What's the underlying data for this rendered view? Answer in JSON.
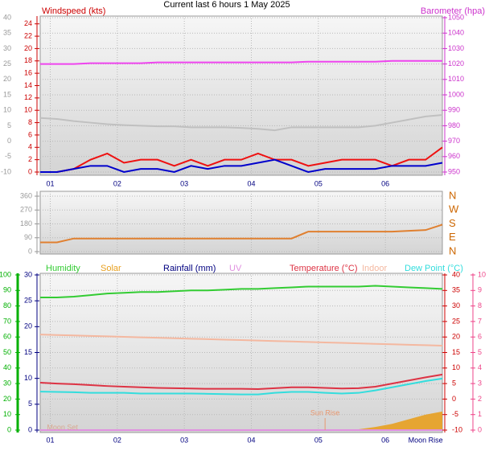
{
  "chart_data": [
    {
      "type": "line",
      "title": "Current last 6 hours 1 May 2025",
      "ylabel": "Windspeed (kts)",
      "y2label": "Barometer (hpa)",
      "x": [
        0.85,
        1.1,
        1.35,
        1.6,
        1.85,
        2.1,
        2.35,
        2.6,
        2.85,
        3.1,
        3.35,
        3.6,
        3.85,
        4.1,
        4.35,
        4.6,
        4.85,
        5.1,
        5.35,
        5.6,
        5.85,
        6.1,
        6.35,
        6.6,
        6.85
      ],
      "xlim": [
        0.85,
        6.85
      ],
      "xticks": [
        {
          "value": 1,
          "label": "01"
        },
        {
          "value": 2,
          "label": "02"
        },
        {
          "value": 3,
          "label": "03"
        },
        {
          "value": 4,
          "label": "04"
        },
        {
          "value": 5,
          "label": "05"
        },
        {
          "value": 6,
          "label": "06"
        }
      ],
      "ylim": [
        0,
        25
      ],
      "yticks": [
        0,
        2,
        4,
        6,
        8,
        10,
        12,
        14,
        16,
        18,
        20,
        22,
        24
      ],
      "ycolor": "#cc0000",
      "y2lim": [
        950,
        1050
      ],
      "y2ticks": [
        950,
        960,
        970,
        980,
        990,
        1000,
        1010,
        1020,
        1030,
        1040,
        1050
      ],
      "y2color": "#cc33cc",
      "y3lim": [
        -10,
        40
      ],
      "y3ticks": [
        -10,
        -5,
        0,
        5,
        10,
        15,
        20,
        25,
        30,
        35,
        40
      ],
      "y3color": "#999999",
      "grid": "y3",
      "series": [
        {
          "color": "#c0c0c0",
          "axis": "y3",
          "values": [
            7.5,
            7.2,
            6.5,
            6,
            5.5,
            5.2,
            5,
            4.8,
            4.8,
            4.5,
            4.5,
            4.5,
            4.3,
            4,
            3.5,
            4.5,
            4.5,
            4.5,
            4.5,
            4.5,
            5,
            6,
            7,
            8,
            8.5
          ]
        },
        {
          "color": "#ee44ee",
          "axis": "y2",
          "values": [
            1020,
            1020,
            1020,
            1020.5,
            1020.5,
            1020.5,
            1020.5,
            1021,
            1021,
            1021,
            1021,
            1021,
            1021,
            1021,
            1021,
            1021,
            1021.5,
            1021.5,
            1021.5,
            1021.5,
            1021.5,
            1022,
            1022,
            1022,
            1022
          ]
        },
        {
          "color": "#ee1111",
          "axis": "y",
          "values": [
            0,
            0,
            0.5,
            2,
            3,
            1.5,
            2,
            2,
            1,
            2,
            1,
            2,
            2,
            3,
            2,
            2,
            1,
            1.5,
            2,
            2,
            2,
            1,
            2,
            2,
            4
          ]
        },
        {
          "color": "#0000cc",
          "axis": "y",
          "values": [
            0,
            0,
            0.5,
            1,
            1,
            0,
            0.5,
            0.5,
            0,
            1,
            0.5,
            1,
            1,
            1.5,
            2,
            1,
            0,
            0.5,
            0.5,
            0.5,
            0.5,
            1,
            1,
            1,
            1.5
          ]
        }
      ]
    },
    {
      "type": "line",
      "x": [
        0.85,
        1.1,
        1.35,
        1.6,
        1.85,
        2.1,
        2.35,
        2.6,
        2.85,
        3.1,
        3.35,
        3.6,
        3.85,
        4.1,
        4.35,
        4.6,
        4.85,
        5.1,
        5.35,
        5.6,
        5.85,
        6.1,
        6.35,
        6.6,
        6.85
      ],
      "xlim": [
        0.85,
        6.85
      ],
      "xticks": [
        {
          "value": 1,
          "label": "01"
        },
        {
          "value": 2,
          "label": "02"
        },
        {
          "value": 3,
          "label": "03"
        },
        {
          "value": 4,
          "label": "04"
        },
        {
          "value": 5,
          "label": "05"
        },
        {
          "value": 6,
          "label": "06"
        }
      ],
      "ylim": [
        0,
        360
      ],
      "yticks": [
        0,
        90,
        180,
        270,
        360
      ],
      "ycolor": "#999999",
      "y2lim": [
        0,
        360
      ],
      "y2ticks": [
        {
          "value": 360,
          "label": "N"
        },
        {
          "value": 270,
          "label": "W"
        },
        {
          "value": 180,
          "label": "S"
        },
        {
          "value": 90,
          "label": "E"
        },
        {
          "value": 0,
          "label": "N"
        }
      ],
      "y2color": "#cc6600",
      "grid": "y",
      "series": [
        {
          "color": "#e08030",
          "axis": "y",
          "values": [
            60,
            60,
            85,
            85,
            85,
            85,
            85,
            85,
            85,
            85,
            85,
            85,
            85,
            85,
            85,
            85,
            130,
            130,
            130,
            130,
            130,
            130,
            135,
            140,
            175
          ]
        }
      ]
    },
    {
      "type": "line",
      "x": [
        0.85,
        1.1,
        1.35,
        1.6,
        1.85,
        2.1,
        2.35,
        2.6,
        2.85,
        3.1,
        3.35,
        3.6,
        3.85,
        4.1,
        4.35,
        4.6,
        4.85,
        5.1,
        5.35,
        5.6,
        5.85,
        6.1,
        6.35,
        6.6,
        6.85
      ],
      "xlim": [
        0.85,
        6.85
      ],
      "xticks": [
        {
          "value": 1,
          "label": "01"
        },
        {
          "value": 2,
          "label": "02"
        },
        {
          "value": 3,
          "label": "03"
        },
        {
          "value": 4,
          "label": "04"
        },
        {
          "value": 5,
          "label": "05"
        },
        {
          "value": 6,
          "label": "06"
        }
      ],
      "ylim": [
        0,
        100
      ],
      "yticks": [
        0,
        10,
        20,
        30,
        40,
        50,
        60,
        70,
        80,
        90,
        100
      ],
      "ycolor": "#00b000",
      "y2lim": [
        -10,
        40
      ],
      "y2ticks": [
        -10,
        -5,
        0,
        5,
        10,
        15,
        20,
        25,
        30,
        35,
        40
      ],
      "y2color": "#cc0000",
      "y3lim": [
        0,
        30
      ],
      "y3ticks": [
        0,
        5,
        10,
        15,
        20,
        25,
        30
      ],
      "y3color": "#000080",
      "y4lim": [
        0,
        10
      ],
      "y4ticks": [
        0,
        1,
        2,
        3,
        4,
        5,
        6,
        7,
        8,
        9,
        10
      ],
      "y4color": "#ee4488",
      "grid": "y2",
      "series": [
        {
          "name": "Humidity",
          "color": "#33cc33",
          "axis": "y",
          "values": [
            85.5,
            85.5,
            86,
            87,
            88,
            88.5,
            89,
            89,
            89.5,
            90,
            90,
            90.5,
            91,
            91,
            91.5,
            92,
            92.5,
            92.5,
            92.5,
            92.5,
            93,
            92.5,
            92,
            91.5,
            91
          ]
        },
        {
          "name": "Solar",
          "color": "#e8a020",
          "axis": "y",
          "style": "area",
          "values": [
            0,
            0,
            0,
            0,
            0,
            0,
            0,
            0,
            0,
            0,
            0,
            0,
            0,
            0,
            0,
            0,
            0,
            0,
            0,
            0.5,
            2,
            4,
            7,
            10,
            12
          ]
        },
        {
          "name": "Rainfall (mm)",
          "color": "#000080",
          "axis": "y3",
          "values": [
            0,
            0,
            0,
            0,
            0,
            0,
            0,
            0,
            0,
            0,
            0,
            0,
            0,
            0,
            0,
            0,
            0,
            0,
            0,
            0,
            0,
            0,
            0,
            0,
            0
          ]
        },
        {
          "name": "UV",
          "color": "#e090e0",
          "axis": "y4",
          "values": [
            0,
            0,
            0,
            0,
            0,
            0,
            0,
            0,
            0,
            0,
            0,
            0,
            0,
            0,
            0,
            0,
            0,
            0,
            0,
            0,
            0,
            0,
            0,
            0,
            0
          ]
        },
        {
          "name": "Temperature (°C)",
          "color": "#dd3344",
          "axis": "y2",
          "values": [
            5.3,
            5,
            4.8,
            4.5,
            4.2,
            4,
            3.8,
            3.6,
            3.5,
            3.4,
            3.3,
            3.3,
            3.3,
            3.2,
            3.5,
            3.8,
            3.8,
            3.6,
            3.4,
            3.5,
            4,
            5,
            6,
            7,
            7.9
          ]
        },
        {
          "name": "Indoor",
          "color": "#f4b8a0",
          "axis": "y2",
          "values": [
            20.8,
            20.65,
            20.5,
            20.35,
            20.2,
            20.05,
            19.9,
            19.75,
            19.6,
            19.45,
            19.3,
            19.15,
            19,
            18.85,
            18.7,
            18.55,
            18.4,
            18.25,
            18.1,
            17.95,
            17.8,
            17.65,
            17.5,
            17.35,
            17.2
          ]
        },
        {
          "name": "Dew Point (°C)",
          "color": "#33dddd",
          "axis": "y2",
          "values": [
            2.4,
            2.3,
            2.2,
            2,
            2,
            2,
            1.8,
            1.8,
            1.8,
            1.8,
            1.7,
            1.6,
            1.5,
            1.5,
            2,
            2.3,
            2.3,
            2,
            1.8,
            2,
            2.8,
            3.8,
            4.8,
            5.8,
            6.6
          ]
        }
      ],
      "annotations": [
        {
          "text": "Moon Set",
          "x": 0.95
        },
        {
          "text": "Sun Rise",
          "x": 5.1
        },
        {
          "text": "Moon Rise",
          "x": 6.6
        }
      ]
    }
  ]
}
